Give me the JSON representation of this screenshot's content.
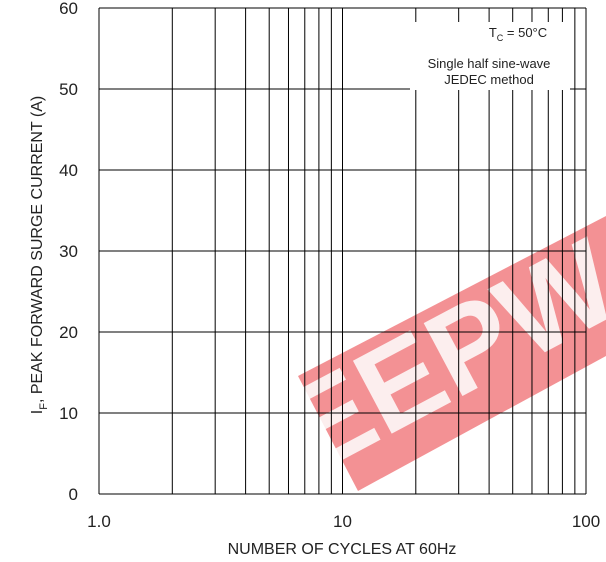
{
  "chart_data": {
    "type": "line",
    "title": "",
    "xlabel": "NUMBER OF CYCLES AT 60Hz",
    "ylabel_prefix": "I",
    "ylabel_sub": "F",
    "ylabel_rest": ", PEAK FORWARD SURGE CURRENT (A)",
    "x_scale": "log",
    "xlim": [
      1,
      100
    ],
    "ylim": [
      0,
      60
    ],
    "x_ticks": [
      1,
      10,
      100
    ],
    "x_tick_labels": [
      "1.0",
      "10",
      "100"
    ],
    "y_ticks": [
      0,
      10,
      20,
      30,
      40,
      50,
      60
    ],
    "y_tick_labels": [
      "0",
      "10",
      "20",
      "30",
      "40",
      "50",
      "60"
    ],
    "grid": true,
    "series": [],
    "annotation": {
      "tc_main": "T",
      "tc_sub": "C",
      "tc_rest": " = 50°C",
      "line2": "Single half sine-wave",
      "line3": "JEDEC method",
      "placement": "top-right"
    },
    "watermark": {
      "text": "EEPW",
      "color": "#e8262b"
    }
  }
}
